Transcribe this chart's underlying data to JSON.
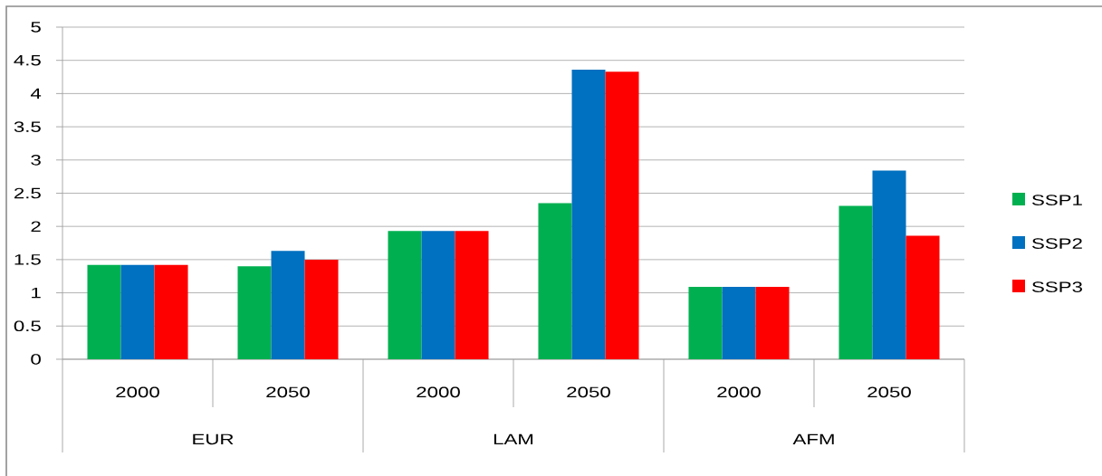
{
  "chart_data": {
    "type": "bar",
    "categories": [
      "2000",
      "2050",
      "2000",
      "2050",
      "2000",
      "2050"
    ],
    "annotations": [
      "EUR",
      "LAM",
      "AFM"
    ],
    "series": [
      {
        "name": "SSP1",
        "color": "#00b050",
        "values": [
          1.42,
          1.4,
          1.93,
          2.35,
          1.09,
          2.31
        ]
      },
      {
        "name": "SSP2",
        "color": "#0070c0",
        "values": [
          1.42,
          1.63,
          1.93,
          4.36,
          1.09,
          2.84
        ]
      },
      {
        "name": "SSP3",
        "color": "#ff0000",
        "values": [
          1.42,
          1.5,
          1.93,
          4.33,
          1.09,
          1.86
        ]
      }
    ],
    "ylim": [
      0,
      5
    ],
    "yticks": [
      0,
      0.5,
      1,
      1.5,
      2,
      2.5,
      3,
      3.5,
      4,
      4.5,
      5
    ],
    "grid": "y",
    "legend": "right"
  }
}
